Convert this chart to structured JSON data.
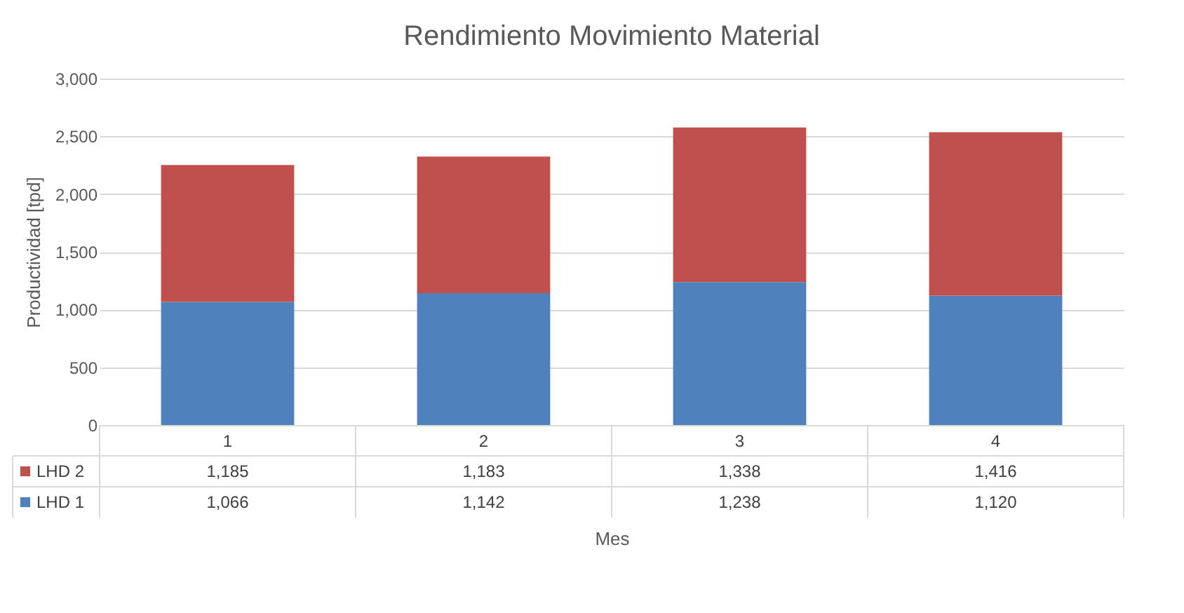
{
  "chart_data": {
    "type": "bar",
    "title": "Rendimiento Movimiento Material",
    "xlabel": "Mes",
    "ylabel": "Productividad [tpd]",
    "categories": [
      "1",
      "2",
      "3",
      "4"
    ],
    "stacked": true,
    "series": [
      {
        "name": "LHD 1",
        "color": "#4f81bd",
        "values": [
          1066,
          1142,
          1238,
          1120
        ],
        "value_labels": [
          "1,066",
          "1,142",
          "1,238",
          "1,120"
        ]
      },
      {
        "name": "LHD 2",
        "color": "#c0504d",
        "values": [
          1185,
          1183,
          1338,
          1416
        ],
        "value_labels": [
          "1,185",
          "1,183",
          "1,338",
          "1,416"
        ]
      }
    ],
    "ylim": [
      0,
      3000
    ],
    "yticks": [
      0,
      {
        "value": 500,
        "label": "500"
      },
      {
        "value": 1000,
        "label": "1,000"
      },
      {
        "value": 1500,
        "label": "1,500"
      },
      {
        "value": 2000,
        "label": "2,000"
      },
      {
        "value": 2500,
        "label": "2,500"
      },
      {
        "value": 3000,
        "label": "3,000"
      }
    ],
    "grid": "y",
    "legend": "bottom"
  }
}
